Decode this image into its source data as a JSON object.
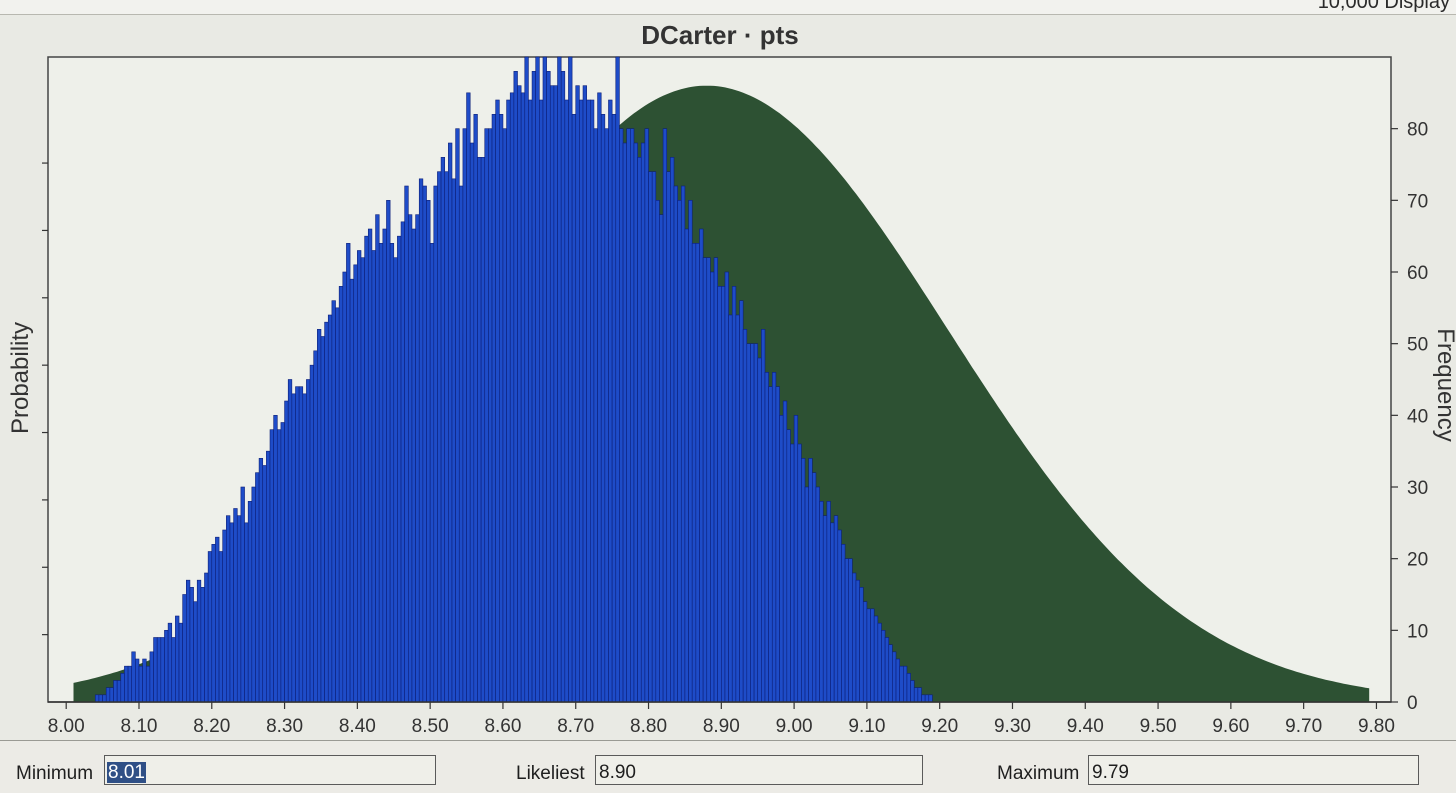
{
  "header": {
    "partial_text": "10,000 Display"
  },
  "chart_data": {
    "type": "bar",
    "title": "DCarter · pts",
    "ylabel_left": "Probability",
    "ylabel_right": "Frequency",
    "xlim": [
      7.975,
      9.82
    ],
    "ylim_right": [
      0,
      90
    ],
    "x_ticks": [
      "8.00",
      "8.10",
      "8.20",
      "8.30",
      "8.40",
      "8.50",
      "8.60",
      "8.70",
      "8.80",
      "8.90",
      "9.00",
      "9.10",
      "9.20",
      "9.30",
      "9.40",
      "9.50",
      "9.60",
      "9.70",
      "9.80"
    ],
    "y_ticks_right": [
      "0",
      "10",
      "20",
      "30",
      "40",
      "50",
      "60",
      "70",
      "80"
    ],
    "bin_start": 8.01,
    "bin_width": 0.005,
    "frequencies": [
      0,
      0,
      0,
      0,
      0,
      0,
      1,
      1,
      1,
      2,
      2,
      3,
      3,
      4,
      5,
      5,
      7,
      6,
      5,
      6,
      5,
      7,
      9,
      9,
      9,
      10,
      11,
      9,
      12,
      11,
      15,
      17,
      16,
      14,
      17,
      16,
      18,
      21,
      22,
      23,
      21,
      24,
      26,
      25,
      27,
      26,
      30,
      25,
      28,
      30,
      32,
      34,
      33,
      35,
      38,
      40,
      38,
      39,
      42,
      45,
      43,
      44,
      44,
      43,
      45,
      47,
      49,
      52,
      51,
      53,
      54,
      56,
      55,
      58,
      60,
      64,
      59,
      61,
      63,
      62,
      65,
      66,
      63,
      68,
      64,
      66,
      70,
      64,
      62,
      65,
      67,
      72,
      68,
      66,
      68,
      73,
      72,
      70,
      64,
      72,
      74,
      76,
      74,
      78,
      73,
      80,
      72,
      80,
      85,
      78,
      82,
      76,
      76,
      80,
      80,
      82,
      84,
      82,
      80,
      84,
      85,
      88,
      86,
      85,
      90,
      84,
      88,
      90,
      84,
      90,
      88,
      86,
      86,
      90,
      88,
      84,
      90,
      82,
      86,
      84,
      86,
      84,
      84,
      80,
      85,
      82,
      80,
      84,
      82,
      90,
      80,
      78,
      80,
      80,
      78,
      76,
      78,
      80,
      74,
      74,
      70,
      68,
      80,
      74,
      76,
      72,
      70,
      72,
      66,
      70,
      64,
      64,
      66,
      62,
      62,
      60,
      62,
      58,
      58,
      60,
      54,
      58,
      54,
      56,
      52,
      50,
      50,
      50,
      48,
      52,
      46,
      44,
      46,
      44,
      40,
      42,
      38,
      36,
      40,
      36,
      34,
      30,
      34,
      32,
      30,
      28,
      26,
      28,
      25,
      26,
      24,
      22,
      20,
      20,
      18,
      17,
      16,
      14,
      13,
      13,
      12,
      11,
      10,
      9,
      8,
      7,
      6,
      5,
      5,
      4,
      3,
      2,
      2,
      1,
      1,
      1,
      0,
      0
    ],
    "density_curve": {
      "mean": 8.88,
      "sd": 0.33,
      "peak_frequency": 86
    }
  },
  "inputs": {
    "minimum": {
      "label": "Minimum",
      "value": "8.01"
    },
    "likeliest": {
      "label": "Likeliest",
      "value": "8.90"
    },
    "maximum": {
      "label": "Maximum",
      "value": "9.79"
    }
  },
  "colors": {
    "plot_bg": "#eef0ea",
    "bar_fill": "#1e4cc8",
    "bar_stroke": "#0c1f78",
    "curve_fill": "#2d5133",
    "axis": "#333333"
  }
}
